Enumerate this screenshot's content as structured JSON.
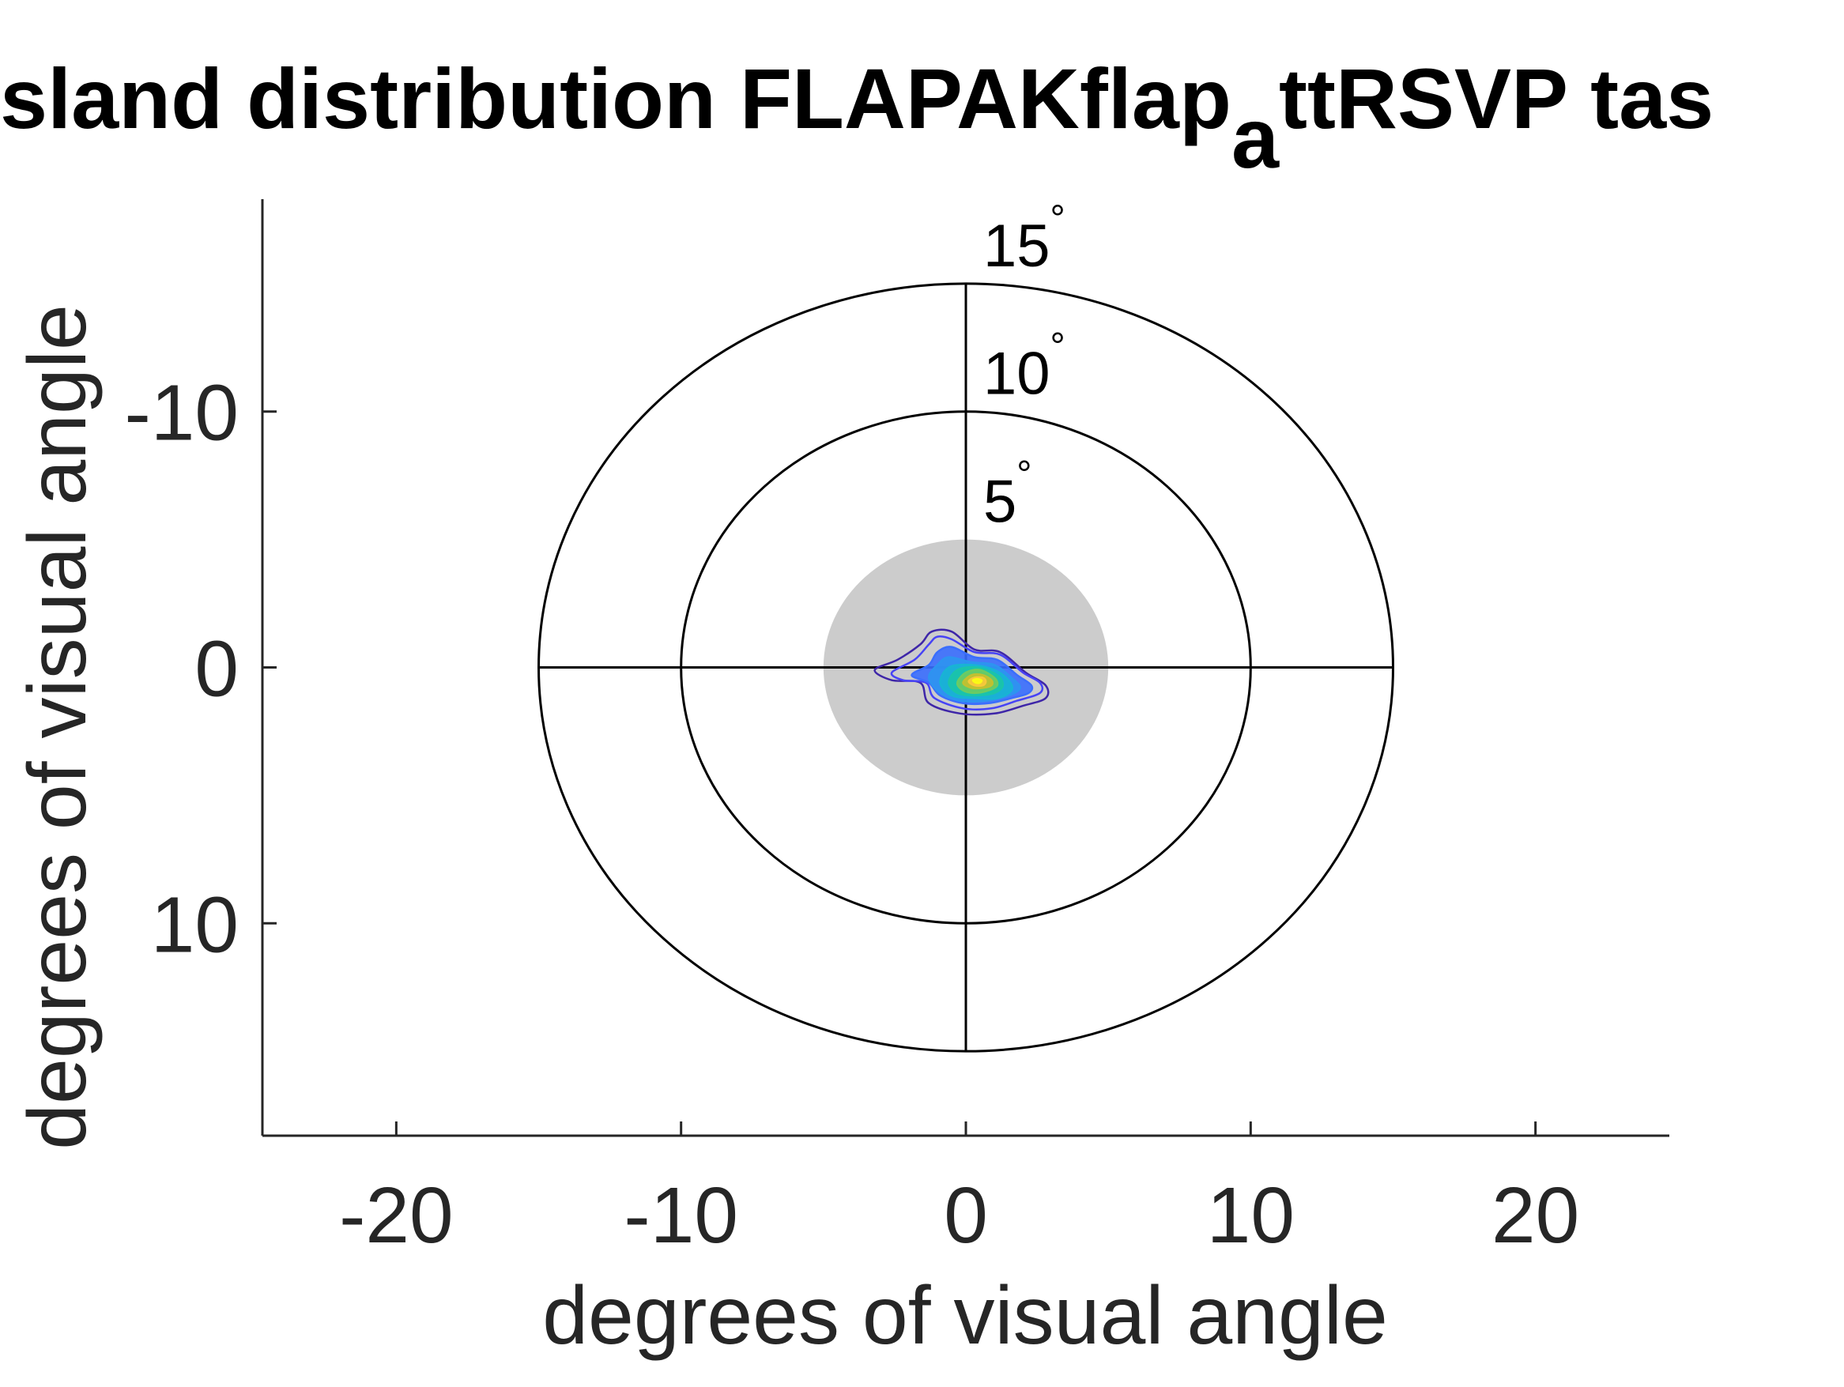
{
  "chart_data": {
    "type": "contour",
    "title": {
      "prefix": "sland distribution FLAPAKflap",
      "subscript": "a",
      "suffix": "ttRSVP tas"
    },
    "xlabel": "degrees of visual angle",
    "ylabel": "degrees of visual angle",
    "xlim": [
      -24.7,
      24.7
    ],
    "ylim": [
      -18.3,
      18.3
    ],
    "y_reversed": true,
    "xticks": [
      -20,
      -10,
      0,
      10,
      20
    ],
    "yticks": [
      -10,
      0,
      10
    ],
    "xtick_labels": [
      "-20",
      "-10",
      "0",
      "10",
      "20"
    ],
    "ytick_labels": [
      "-10",
      "0",
      "10"
    ],
    "grid": false,
    "rings": [
      {
        "radius": 5,
        "label": "5",
        "degree_symbol": "°"
      },
      {
        "radius": 10,
        "label": "10",
        "degree_symbol": "°"
      },
      {
        "radius": 15,
        "label": "15",
        "degree_symbol": "°"
      }
    ],
    "fovea_disc_radius": 5,
    "contour_center": [
      0.3,
      0.5
    ],
    "contours": [
      {
        "level": 1,
        "points": [
          [
            -3.2,
            0.1
          ],
          [
            -2.4,
            -0.3
          ],
          [
            -1.6,
            -0.9
          ],
          [
            -1.2,
            -1.4
          ],
          [
            -0.5,
            -1.4
          ],
          [
            0.3,
            -0.7
          ],
          [
            1.2,
            -0.6
          ],
          [
            2.1,
            0.2
          ],
          [
            2.8,
            0.7
          ],
          [
            2.8,
            1.2
          ],
          [
            2.0,
            1.5
          ],
          [
            1.0,
            1.8
          ],
          [
            -0.2,
            1.8
          ],
          [
            -1.3,
            1.4
          ],
          [
            -1.6,
            0.6
          ],
          [
            -2.6,
            0.5
          ]
        ]
      },
      {
        "level": 2,
        "points": [
          [
            -2.6,
            0.2
          ],
          [
            -1.8,
            -0.3
          ],
          [
            -1.3,
            -0.9
          ],
          [
            -1.0,
            -1.2
          ],
          [
            -0.5,
            -1.1
          ],
          [
            0.3,
            -0.6
          ],
          [
            1.2,
            -0.5
          ],
          [
            2.0,
            0.2
          ],
          [
            2.6,
            0.6
          ],
          [
            2.6,
            1.0
          ],
          [
            1.8,
            1.3
          ],
          [
            0.9,
            1.6
          ],
          [
            -0.1,
            1.6
          ],
          [
            -1.1,
            1.2
          ],
          [
            -1.4,
            0.6
          ],
          [
            -2.2,
            0.5
          ]
        ]
      },
      {
        "level": 3,
        "points": [
          [
            -1.9,
            0.3
          ],
          [
            -1.3,
            -0.1
          ],
          [
            -1.0,
            -0.6
          ],
          [
            -0.5,
            -0.8
          ],
          [
            0.3,
            -0.4
          ],
          [
            1.1,
            -0.3
          ],
          [
            1.8,
            0.3
          ],
          [
            2.3,
            0.7
          ],
          [
            2.2,
            1.0
          ],
          [
            1.6,
            1.2
          ],
          [
            0.8,
            1.4
          ],
          [
            -0.1,
            1.4
          ],
          [
            -0.9,
            1.1
          ],
          [
            -1.3,
            0.6
          ]
        ]
      },
      {
        "level": 4,
        "points": [
          [
            -1.3,
            0.4
          ],
          [
            -1.0,
            -0.1
          ],
          [
            -0.6,
            -0.4
          ],
          [
            0.2,
            -0.2
          ],
          [
            1.0,
            -0.1
          ],
          [
            1.6,
            0.4
          ],
          [
            1.9,
            0.8
          ],
          [
            1.5,
            1.1
          ],
          [
            0.7,
            1.3
          ],
          [
            -0.2,
            1.3
          ],
          [
            -0.9,
            1.0
          ]
        ]
      },
      {
        "level": 5,
        "points": [
          [
            -0.9,
            0.6
          ],
          [
            -0.6,
            0.0
          ],
          [
            0.2,
            -0.1
          ],
          [
            1.0,
            0.1
          ],
          [
            1.5,
            0.5
          ],
          [
            1.6,
            0.9
          ],
          [
            1.1,
            1.2
          ],
          [
            0.3,
            1.2
          ],
          [
            -0.5,
            1.1
          ]
        ]
      },
      {
        "level": 6,
        "points": [
          [
            -0.6,
            0.6
          ],
          [
            -0.3,
            0.1
          ],
          [
            0.4,
            0.0
          ],
          [
            1.1,
            0.3
          ],
          [
            1.3,
            0.7
          ],
          [
            1.0,
            1.0
          ],
          [
            0.3,
            1.1
          ],
          [
            -0.3,
            1.0
          ]
        ]
      },
      {
        "level": 7,
        "points": [
          [
            -0.3,
            0.6
          ],
          [
            0.0,
            0.2
          ],
          [
            0.5,
            0.1
          ],
          [
            1.0,
            0.4
          ],
          [
            1.1,
            0.7
          ],
          [
            0.8,
            0.9
          ],
          [
            0.3,
            1.0
          ],
          [
            -0.1,
            0.9
          ]
        ]
      },
      {
        "level": 8,
        "points": [
          [
            -0.1,
            0.6
          ],
          [
            0.2,
            0.3
          ],
          [
            0.6,
            0.3
          ],
          [
            0.9,
            0.5
          ],
          [
            0.9,
            0.7
          ],
          [
            0.6,
            0.8
          ],
          [
            0.2,
            0.8
          ]
        ]
      },
      {
        "level": 9,
        "points": [
          [
            0.1,
            0.55
          ],
          [
            0.3,
            0.4
          ],
          [
            0.6,
            0.4
          ],
          [
            0.7,
            0.55
          ],
          [
            0.6,
            0.7
          ],
          [
            0.3,
            0.7
          ]
        ]
      },
      {
        "level": 10,
        "points": [
          [
            0.25,
            0.5
          ],
          [
            0.4,
            0.45
          ],
          [
            0.55,
            0.5
          ],
          [
            0.5,
            0.6
          ],
          [
            0.35,
            0.6
          ]
        ]
      }
    ],
    "colors": {
      "axis": "#262626",
      "rings": "#000000",
      "fovea_disc": "#cccccc",
      "contour_scale": [
        "#3e26a8",
        "#4743f5",
        "#3a6efd",
        "#2d94f0",
        "#18b4d4",
        "#1ac4aa",
        "#6ccb63",
        "#c2c030",
        "#f7c83a",
        "#f9fb15"
      ]
    }
  }
}
